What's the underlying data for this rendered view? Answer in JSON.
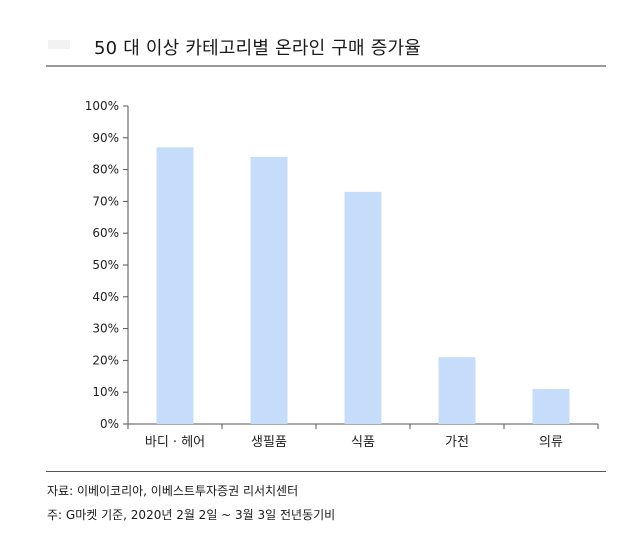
{
  "chart_data": {
    "type": "bar",
    "title": "50 대 이상 카테고리별 온라인 구매 증가율",
    "categories": [
      "바디 · 헤어",
      "생필품",
      "식품",
      "가전",
      "의류"
    ],
    "values": [
      87,
      84,
      73,
      21,
      11
    ],
    "y_ticks": [
      "0%",
      "10%",
      "20%",
      "30%",
      "40%",
      "50%",
      "60%",
      "70%",
      "80%",
      "90%",
      "100%"
    ],
    "ylim": [
      0,
      100
    ],
    "bar_color": "#c5dcfa",
    "grid": false,
    "legend": "none"
  },
  "notes": {
    "source": "자료: 이베이코리아, 이베스트투자증권 리서치센터",
    "footnote": "주: G마켓 기준, 2020년 2월 2일 ~ 3월 3일 전년동기비"
  }
}
